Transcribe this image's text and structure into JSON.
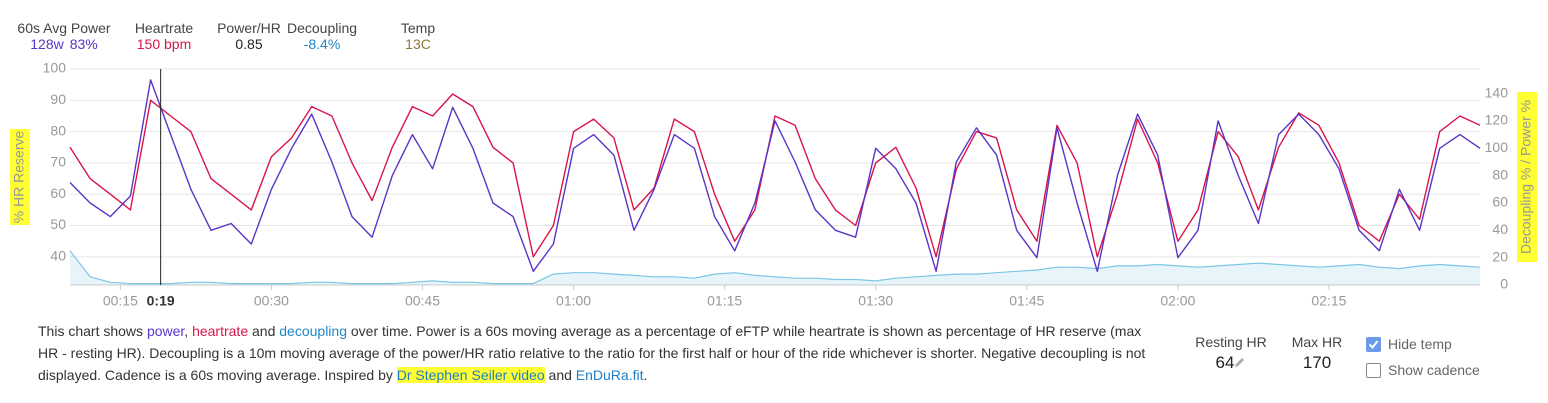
{
  "stats": [
    {
      "label": "60s Avg Power",
      "values": [
        "128w",
        "83%"
      ]
    },
    {
      "label": "Heartrate",
      "values": [
        "150 bpm"
      ]
    },
    {
      "label": "Power/HR",
      "values": [
        "0.85"
      ]
    },
    {
      "label": "Decoupling",
      "values": [
        "-8.4%"
      ]
    },
    {
      "label": "Temp",
      "values": [
        "13C"
      ]
    }
  ],
  "chart_data": {
    "type": "line",
    "y_label": "% HR Reserve",
    "y2_label": "Decoupling % / Power %",
    "xlim": [
      10,
      150
    ],
    "xticks": [
      {
        "value": 15,
        "label": "00:15"
      },
      {
        "value": 30,
        "label": "00:30"
      },
      {
        "value": 45,
        "label": "00:45"
      },
      {
        "value": 60,
        "label": "01:00"
      },
      {
        "value": 75,
        "label": "01:15"
      },
      {
        "value": 90,
        "label": "01:30"
      },
      {
        "value": 105,
        "label": "01:45"
      },
      {
        "value": 120,
        "label": "02:00"
      },
      {
        "value": 135,
        "label": "02:15"
      }
    ],
    "cursor": {
      "value": 19,
      "label": "0:19"
    },
    "ylim": [
      31,
      100
    ],
    "yticks": [
      40,
      50,
      60,
      70,
      80,
      90,
      100
    ],
    "y2lim": [
      0,
      158
    ],
    "y2ticks": [
      0,
      20,
      40,
      60,
      80,
      100,
      120,
      140
    ],
    "grid": true,
    "x": [
      10,
      12,
      14,
      16,
      18,
      20,
      22,
      24,
      26,
      28,
      30,
      32,
      34,
      36,
      38,
      40,
      42,
      44,
      46,
      48,
      50,
      52,
      54,
      56,
      58,
      60,
      62,
      64,
      66,
      68,
      70,
      72,
      74,
      76,
      78,
      80,
      82,
      84,
      86,
      88,
      90,
      92,
      94,
      96,
      98,
      100,
      102,
      104,
      106,
      108,
      110,
      112,
      114,
      116,
      118,
      120,
      122,
      124,
      126,
      128,
      130,
      132,
      134,
      136,
      138,
      140,
      142,
      144,
      146,
      148,
      150
    ],
    "series": [
      {
        "name": "power",
        "color": "#5b34c8",
        "axis": "y2",
        "values": [
          75,
          60,
          50,
          65,
          150,
          110,
          70,
          40,
          45,
          30,
          70,
          100,
          125,
          90,
          50,
          35,
          80,
          110,
          85,
          130,
          100,
          60,
          50,
          10,
          30,
          100,
          110,
          95,
          40,
          70,
          110,
          100,
          50,
          25,
          60,
          120,
          90,
          55,
          40,
          35,
          100,
          85,
          60,
          10,
          90,
          115,
          95,
          40,
          20,
          115,
          60,
          10,
          80,
          125,
          95,
          20,
          40,
          120,
          80,
          45,
          110,
          125,
          110,
          85,
          40,
          25,
          70,
          40,
          100,
          110,
          100
        ]
      },
      {
        "name": "heartrate",
        "color": "#d7154b",
        "values": [
          75,
          65,
          60,
          55,
          90,
          85,
          80,
          65,
          60,
          55,
          72,
          78,
          88,
          85,
          70,
          58,
          75,
          88,
          85,
          92,
          88,
          75,
          70,
          40,
          50,
          80,
          84,
          78,
          55,
          62,
          84,
          80,
          60,
          45,
          55,
          85,
          82,
          65,
          55,
          50,
          70,
          75,
          62,
          40,
          68,
          80,
          78,
          55,
          45,
          82,
          70,
          40,
          60,
          84,
          70,
          45,
          55,
          80,
          72,
          55,
          75,
          86,
          82,
          70,
          50,
          45,
          60,
          52,
          80,
          85,
          82
        ]
      },
      {
        "name": "decoupling",
        "color": "#7cc6e6",
        "axis": "y2",
        "values": [
          25,
          6,
          2,
          1,
          1,
          1,
          2,
          2,
          1,
          1,
          1,
          1,
          2,
          2,
          1,
          1,
          1,
          2,
          3,
          2,
          2,
          1,
          1,
          1,
          8,
          9,
          9,
          8,
          7,
          6,
          6,
          5,
          8,
          9,
          7,
          6,
          5,
          5,
          4,
          4,
          3,
          5,
          6,
          7,
          8,
          8,
          9,
          10,
          11,
          13,
          13,
          12,
          14,
          14,
          15,
          14,
          13,
          14,
          15,
          16,
          15,
          14,
          13,
          14,
          15,
          13,
          12,
          14,
          15,
          14,
          13
        ]
      }
    ]
  },
  "description": {
    "parts": [
      "This chart shows ",
      ", ",
      " and ",
      " over time. Power is a 60s moving average as a percentage of eFTP while heartrate is shown as percentage of HR reserve (max HR - resting HR). Decoupling is a 10m moving average of the power/HR ratio relative to the ratio for the first half or hour of the ride whichever is shorter. Negative decoupling is not displayed. Cadence is a 60s moving average. Inspired by ",
      " and ",
      "."
    ],
    "links": [
      "Dr Stephen Seiler video",
      "EnDuRa.fit"
    ]
  },
  "settings": {
    "resting_hr_label": "Resting HR",
    "resting_hr": 64,
    "max_hr_label": "Max HR",
    "max_hr": 170,
    "checkboxes": [
      {
        "label": "Hide temp",
        "checked": true
      },
      {
        "label": "Show cadence",
        "checked": false
      }
    ]
  }
}
